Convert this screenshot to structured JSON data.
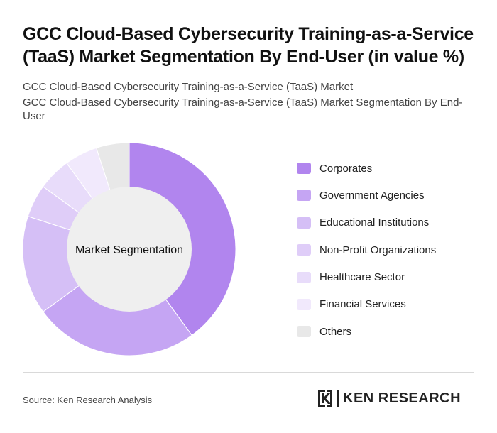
{
  "header": {
    "title": "GCC Cloud-Based Cybersecurity Training-as-a-Service (TaaS) Market Segmentation By End-User (in value %)",
    "subtitle_1": "GCC Cloud-Based Cybersecurity Training-as-a-Service (TaaS) Market",
    "subtitle_2": "GCC Cloud-Based Cybersecurity Training-as-a-Service (TaaS) Market Segmentation By End-User"
  },
  "chart_data": {
    "type": "pie",
    "variant": "donut",
    "center_label": "Market Segmentation",
    "categories": [
      "Corporates",
      "Government Agencies",
      "Educational Institutions",
      "Non-Profit Organizations",
      "Healthcare Sector",
      "Financial Services",
      "Others"
    ],
    "values": [
      40,
      25,
      15,
      5,
      5,
      5,
      5
    ],
    "colors": [
      "#b185ee",
      "#c5a5f3",
      "#d5bff6",
      "#dfcdf8",
      "#e8dcfa",
      "#f1e9fc",
      "#e8e8e8"
    ],
    "legend_position": "right"
  },
  "footer": {
    "source": "Source: Ken Research Analysis",
    "logo_text": "KEN RESEARCH"
  }
}
